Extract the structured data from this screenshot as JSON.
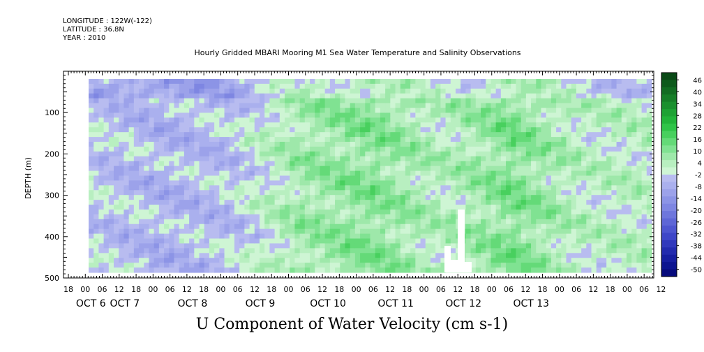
{
  "header": {
    "longitude": "LONGITUDE : 122W(-122)",
    "latitude": "LATITUDE : 36.8N",
    "year": "YEAR : 2010",
    "title": "Hourly Gridded MBARI Mooring M1 Sea Water Temperature and Salinity Observations"
  },
  "chart_data": {
    "type": "heatmap",
    "title": "U Component of Water Velocity (cm s-1)",
    "ylabel": "DEPTH (m)",
    "ylim": [
      500,
      0
    ],
    "y_reversed": true,
    "y_ticks": [
      100,
      200,
      300,
      400,
      500
    ],
    "x_hour_ticks": [
      "18",
      "00",
      "06",
      "12",
      "18",
      "00",
      "06",
      "12",
      "18",
      "00",
      "06",
      "12",
      "18",
      "00",
      "06",
      "12",
      "18",
      "00",
      "06",
      "12",
      "18",
      "00",
      "06",
      "12",
      "18",
      "00",
      "06",
      "12",
      "18",
      "00",
      "06",
      "12",
      "18",
      "00",
      "06",
      "12"
    ],
    "x_date_labels": [
      {
        "label": "OCT  6",
        "tick_index": 1
      },
      {
        "label": "OCT  7",
        "tick_index": 3
      },
      {
        "label": "OCT  8",
        "tick_index": 7
      },
      {
        "label": "OCT  9",
        "tick_index": 11
      },
      {
        "label": "OCT 10",
        "tick_index": 15
      },
      {
        "label": "OCT 11",
        "tick_index": 19
      },
      {
        "label": "OCT 12",
        "tick_index": 23
      },
      {
        "label": "OCT 13",
        "tick_index": 27
      }
    ],
    "colorbar": {
      "labels": [
        "46",
        "40",
        "34",
        "28",
        "22",
        "16",
        "10",
        "4",
        "-2",
        "-8",
        "-14",
        "-20",
        "-26",
        "-32",
        "-38",
        "-44",
        "-50"
      ],
      "colors_top_to_bottom": [
        "#0a4a16",
        "#0e5a1c",
        "#126c22",
        "#167e28",
        "#1a902e",
        "#1ea234",
        "#22b43a",
        "#2fc448",
        "#48d05e",
        "#64da78",
        "#80e292",
        "#9ee8aa",
        "#b8efc0",
        "#cef5d4",
        "#b8bcf0",
        "#aab0ee",
        "#9ca2ea",
        "#8c94e6",
        "#7e86e2",
        "#6e76dc",
        "#5e66d6",
        "#4e56d0",
        "#3e46c8",
        "#3038bc",
        "#222aae",
        "#161ea0",
        "#0c1490",
        "#060a7c"
      ]
    },
    "series": [
      {
        "day": "OCT 6",
        "mean_u_cm_s": -3
      },
      {
        "day": "OCT 7",
        "mean_u_cm_s": -6
      },
      {
        "day": "OCT 8",
        "mean_u_cm_s": -4
      },
      {
        "day": "OCT 9",
        "mean_u_cm_s": 6
      },
      {
        "day": "OCT 10",
        "mean_u_cm_s": 9
      },
      {
        "day": "OCT 11",
        "mean_u_cm_s": 3
      },
      {
        "day": "OCT 12",
        "mean_u_cm_s": 10
      },
      {
        "day": "OCT 13",
        "mean_u_cm_s": 2
      }
    ]
  }
}
